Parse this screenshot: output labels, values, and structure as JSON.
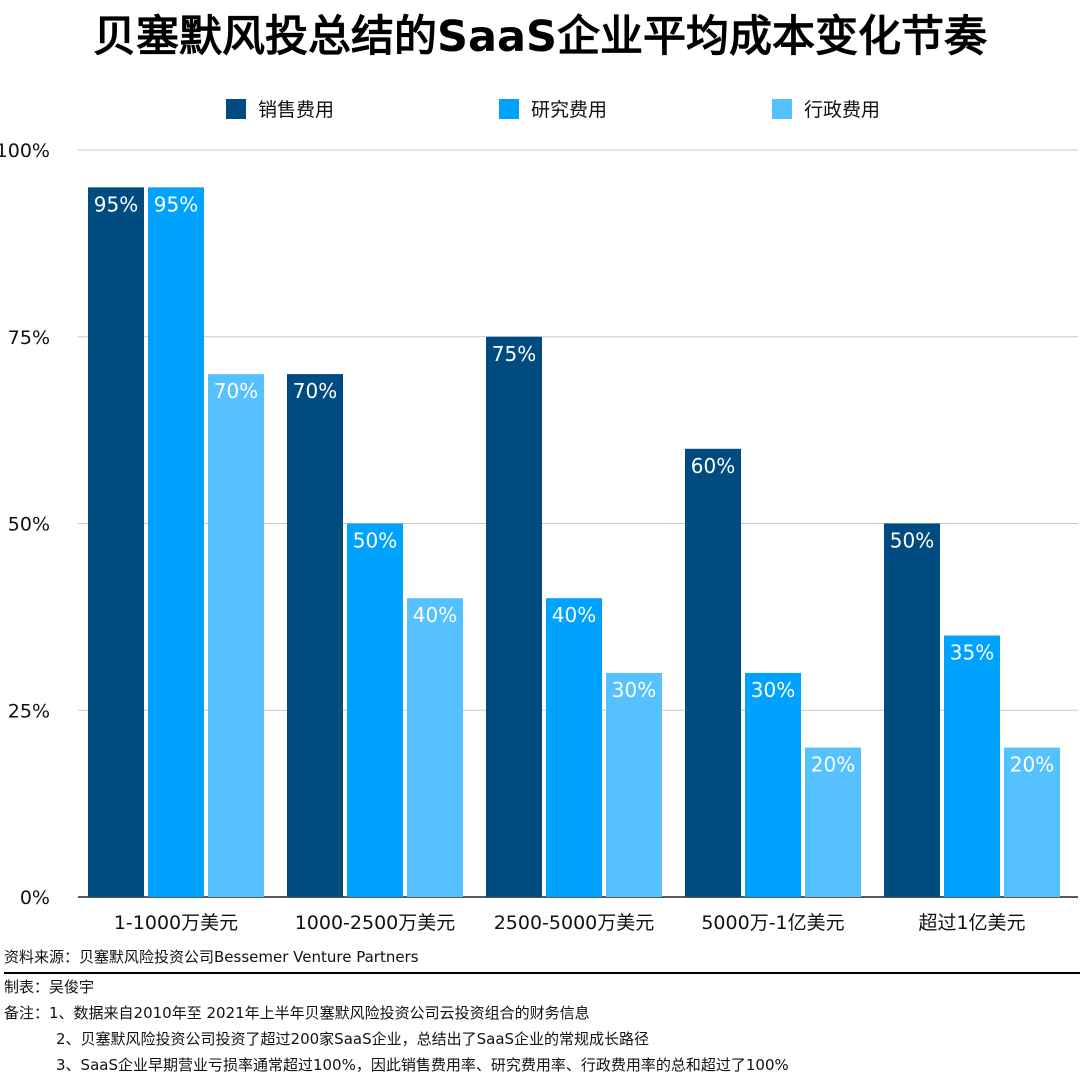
{
  "title": "贝塞默风投总结的SaaS企业平均成本变化节奏",
  "chart_data": {
    "type": "bar",
    "categories": [
      "1-1000万美元",
      "1000-2500万美元",
      "2500-5000万美元",
      "5000万-1亿美元",
      "超过1亿美元"
    ],
    "series": [
      {
        "name": "销售费用",
        "values": [
          95,
          70,
          75,
          60,
          50
        ],
        "labels": [
          "95%",
          "70%",
          "75%",
          "60%",
          "50%"
        ],
        "color": "#004b7f"
      },
      {
        "name": "研究费用",
        "values": [
          95,
          50,
          40,
          30,
          35
        ],
        "labels": [
          "95%",
          "50%",
          "40%",
          "30%",
          "35%"
        ],
        "color": "#00a2ff"
      },
      {
        "name": "行政费用",
        "values": [
          70,
          40,
          30,
          20,
          20
        ],
        "labels": [
          "70%",
          "40%",
          "30%",
          "20%",
          "20%"
        ],
        "color": "#56c1ff"
      }
    ],
    "y_ticks": [
      0,
      25,
      50,
      75,
      100
    ],
    "y_tick_labels": [
      "0%",
      "25%",
      "50%",
      "75%",
      "100%"
    ],
    "ylim": [
      0,
      100
    ],
    "grid": true,
    "legend_position": "top"
  },
  "footer": {
    "source": "资料来源：贝塞默风险投资公司Bessemer Venture Partners",
    "author": "制表：吴俊宇",
    "note1": "备注：1、数据来自2010年至 2021年上半年贝塞默风险投资公司云投资组合的财务信息",
    "note2": "2、贝塞默风险投资公司投资了超过200家SaaS企业，总结出了SaaS企业的常规成长路径",
    "note3": "3、SaaS企业早期营业亏损率通常超过100%，因此销售费用率、研究费用率、行政费用率的总和超过了100%"
  }
}
